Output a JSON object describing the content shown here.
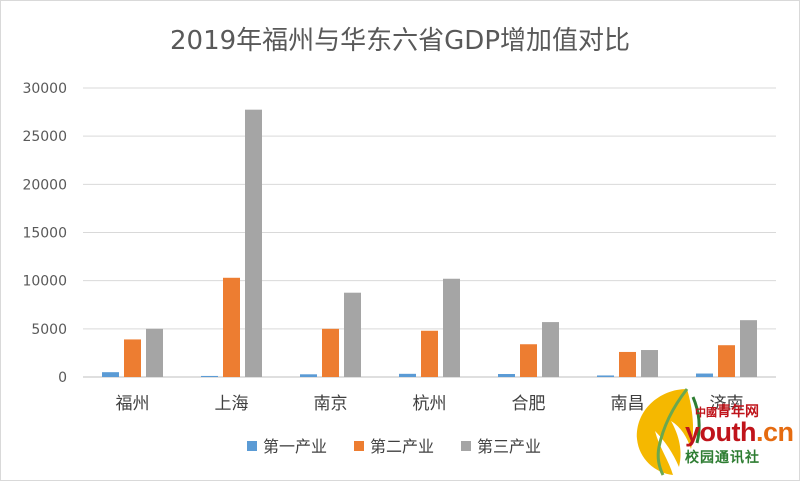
{
  "chart_data": {
    "type": "bar",
    "title": "2019年福州与华东六省GDP增加值对比",
    "categories": [
      "福州",
      "上海",
      "南京",
      "杭州",
      "合肥",
      "南昌",
      "济南"
    ],
    "series": [
      {
        "name": "第一产业",
        "color": "#5b9bd5",
        "values": [
          500,
          110,
          280,
          330,
          310,
          160,
          360
        ]
      },
      {
        "name": "第二产业",
        "color": "#ed7d31",
        "values": [
          3900,
          10300,
          5000,
          4800,
          3400,
          2600,
          3300
        ]
      },
      {
        "name": "第三产业",
        "color": "#a5a5a5",
        "values": [
          5000,
          27750,
          8750,
          10200,
          5700,
          2800,
          5900
        ]
      }
    ],
    "ylim": [
      0,
      30000
    ],
    "yticks": [
      0,
      5000,
      10000,
      15000,
      20000,
      25000,
      30000
    ],
    "grid": true,
    "legend": "bottom"
  },
  "watermark": {
    "china": "中國",
    "line1": "青年网",
    "line2a": "youth",
    "line2b": ".cn",
    "line3": "校园通讯社"
  }
}
